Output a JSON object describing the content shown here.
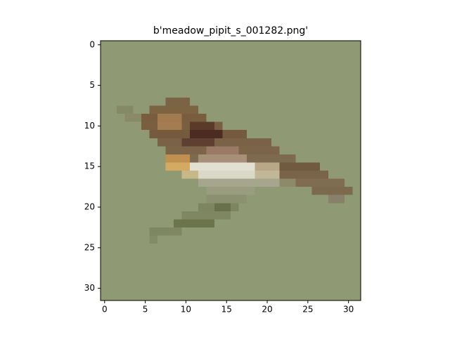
{
  "chart_data": {
    "type": "image",
    "title": "b'meadow_pipit_s_001282.png'",
    "xlim": [
      -0.5,
      31.5
    ],
    "ylim": [
      31.5,
      -0.5
    ],
    "xticks": [
      0,
      5,
      10,
      15,
      20,
      25,
      30
    ],
    "yticks": [
      0,
      5,
      10,
      15,
      20,
      25,
      30
    ]
  }
}
